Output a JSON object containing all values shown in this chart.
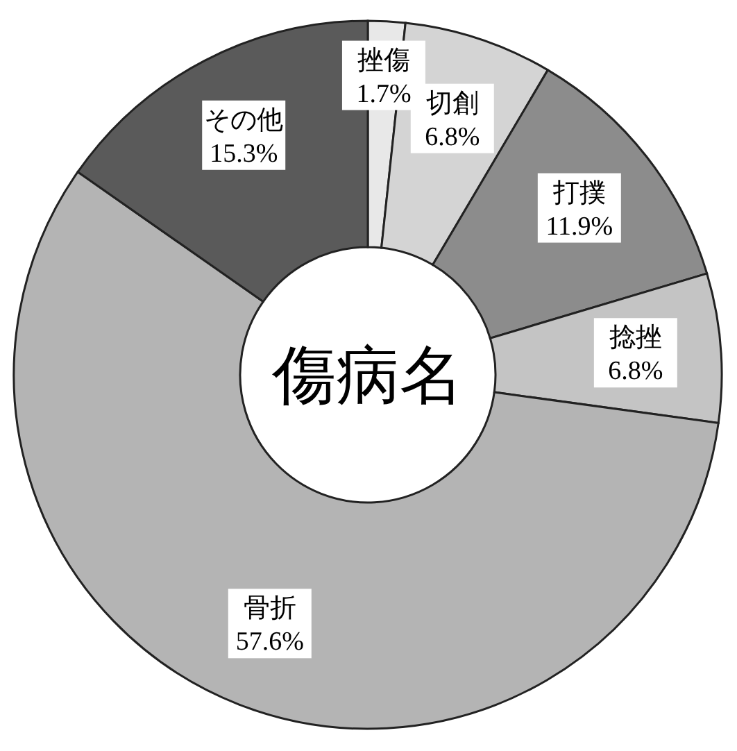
{
  "chart_data": {
    "type": "donut",
    "title": "傷病名",
    "categories": [
      "挫傷",
      "切創",
      "打撲",
      "捻挫",
      "骨折",
      "その他"
    ],
    "values": [
      1.7,
      6.8,
      11.9,
      6.8,
      57.6,
      15.3
    ],
    "value_labels": [
      "1.7%",
      "6.8%",
      "11.9%",
      "6.8%",
      "57.6%",
      "15.3%"
    ],
    "colors": [
      "#e8e8e8",
      "#d4d4d4",
      "#8c8c8c",
      "#c4c4c4",
      "#b4b4b4",
      "#5a5a5a"
    ]
  }
}
